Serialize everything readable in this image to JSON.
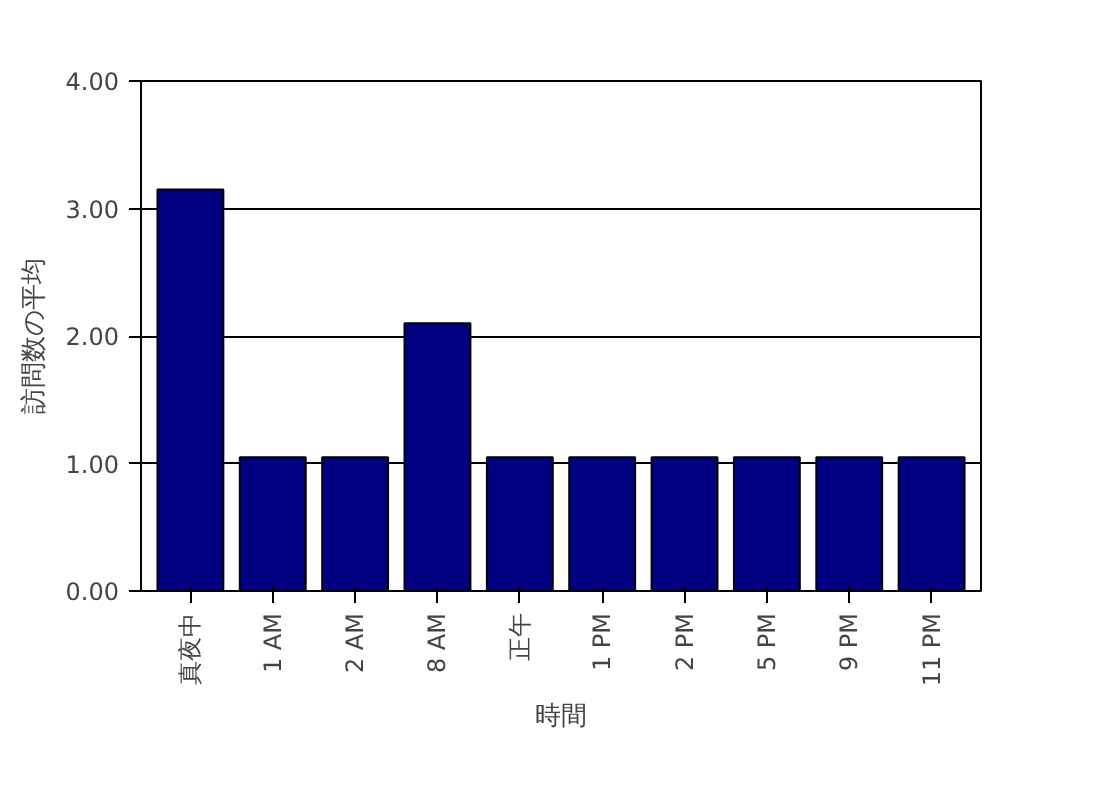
{
  "chart_data": {
    "type": "bar",
    "xlabel": "時間",
    "ylabel": "訪問数の平均",
    "categories": [
      "真夜中",
      "1 AM",
      "2 AM",
      "8 AM",
      "正午",
      "1 PM",
      "2 PM",
      "5 PM",
      "9 PM",
      "11 PM"
    ],
    "values": [
      3.15,
      1.05,
      1.05,
      2.1,
      1.05,
      1.05,
      1.05,
      1.05,
      1.05,
      1.05
    ],
    "color": "#000080",
    "ylim": [
      0,
      4
    ],
    "yticks": [
      {
        "value": 0,
        "label": "0.00"
      },
      {
        "value": 1,
        "label": "1.00"
      },
      {
        "value": 2,
        "label": "2.00"
      },
      {
        "value": 3,
        "label": "3.00"
      },
      {
        "value": 4,
        "label": "4.00"
      }
    ],
    "grid": "y"
  }
}
